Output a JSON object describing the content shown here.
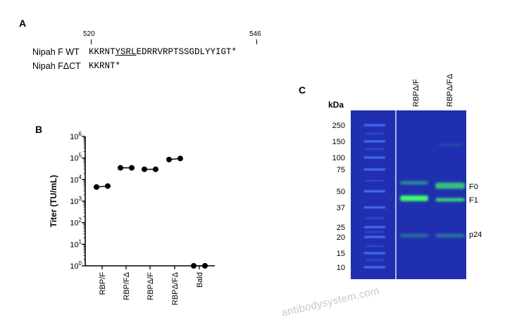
{
  "panel_a": {
    "label": "A",
    "pos_start": "520",
    "pos_end": "546",
    "rows": [
      {
        "name": "Nipah F WT",
        "seq_pre": "KKRNT",
        "seq_motif": "YSRL",
        "seq_post": "EDRRVRPTSSGDLYYIGT*"
      },
      {
        "name": "Nipah FΔCT",
        "seq_pre": "KKRNT*",
        "seq_motif": "",
        "seq_post": ""
      }
    ]
  },
  "panel_b": {
    "label": "B",
    "chart_data": {
      "type": "scatter",
      "ylabel": "Titer (TU/mL)",
      "yscale": "log",
      "ylim": [
        1,
        1000000
      ],
      "yticks": [
        {
          "value": 1,
          "base": "10",
          "exp": "0"
        },
        {
          "value": 10,
          "base": "10",
          "exp": "1"
        },
        {
          "value": 100,
          "base": "10",
          "exp": "2"
        },
        {
          "value": 1000,
          "base": "10",
          "exp": "3"
        },
        {
          "value": 10000,
          "base": "10",
          "exp": "4"
        },
        {
          "value": 100000,
          "base": "10",
          "exp": "5"
        },
        {
          "value": 1000000,
          "base": "10",
          "exp": "6"
        }
      ],
      "categories": [
        "RBP/F",
        "RBP/FΔ",
        "RBPΔ/F",
        "RBPΔ/FΔ",
        "Bald"
      ],
      "points": [
        [
          4500,
          5000
        ],
        [
          35000,
          35000
        ],
        [
          30000,
          30000
        ],
        [
          85000,
          95000
        ],
        [
          1,
          1
        ]
      ],
      "grid": false,
      "point_color": "#000000"
    }
  },
  "panel_c": {
    "label": "C",
    "kda_title": "kDa",
    "markers": [
      "250",
      "150",
      "100",
      "75",
      "50",
      "37",
      "25",
      "20",
      "15",
      "10"
    ],
    "lanes": [
      "RBPΔ/F",
      "RBPΔ/FΔ"
    ],
    "bands": [
      "F0",
      "F1",
      "p24"
    ],
    "colors": {
      "gel_bg": "#1f2fb0",
      "ladder": "#4e74ff",
      "band": "#3cff6a"
    }
  },
  "watermark": "antibodysystem.com"
}
